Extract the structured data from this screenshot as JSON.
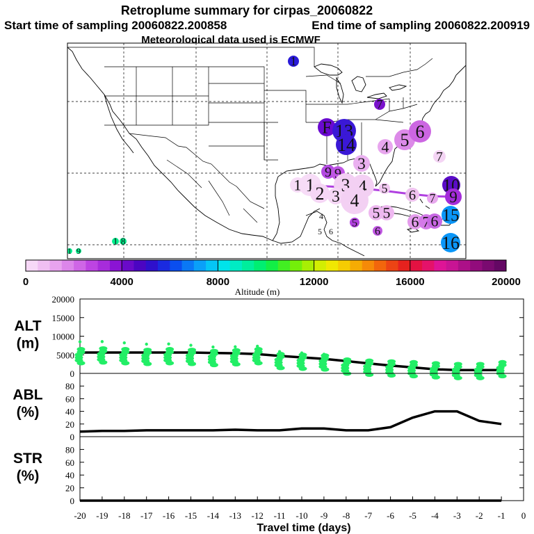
{
  "header": {
    "title": "Retroplume summary for cirpas_20060822",
    "start_label": "Start time of sampling 20060822.200858",
    "end_label": "End time of sampling 20060822.200919",
    "met_label": "Meteorological data used is ECMWF"
  },
  "colorbar": {
    "ticks": [
      "0",
      "4000",
      "8000",
      "12000",
      "16000",
      "20000"
    ],
    "label": "Altitude (m)",
    "colors": [
      "#f7d8f7",
      "#f0bff2",
      "#e8a3ee",
      "#dc86ea",
      "#cf66e6",
      "#bd44e2",
      "#a72cdb",
      "#8b14d4",
      "#6a0ac9",
      "#4b05c2",
      "#2e10cc",
      "#1a2ae0",
      "#0a4eef",
      "#0a78f5",
      "#0aa0f8",
      "#05c6f6",
      "#00e4ea",
      "#00ecc4",
      "#00ee9c",
      "#00ee72",
      "#12ee46",
      "#42ee22",
      "#74ee0a",
      "#a8ee04",
      "#d2ee02",
      "#f0e802",
      "#f6cc02",
      "#f6ac04",
      "#f68a08",
      "#f2660c",
      "#ec4414",
      "#e6221e",
      "#e41242",
      "#e4126a",
      "#de1496",
      "#c81494",
      "#ac1088",
      "#920c7c",
      "#7a0a70",
      "#640864"
    ]
  },
  "map": {
    "land_color": "#ffffff",
    "line_color": "#000000",
    "markers": [
      {
        "label": "1",
        "x": 100,
        "y": 361,
        "alt": 9500,
        "color": "#00ee8c",
        "size": 4
      },
      {
        "label": "9",
        "x": 113,
        "y": 361,
        "alt": 9500,
        "color": "#00ee8c",
        "size": 4
      },
      {
        "label": "1",
        "x": 166,
        "y": 347,
        "alt": 9800,
        "color": "#00ee8c",
        "size": 5
      },
      {
        "label": "8",
        "x": 177,
        "y": 347,
        "alt": 9800,
        "color": "#00ee8c",
        "size": 5
      },
      {
        "label": "1",
        "x": 422,
        "y": 88,
        "alt": 4500,
        "color": "#2a1ad8",
        "size": 8
      },
      {
        "label": "7",
        "x": 546,
        "y": 150,
        "alt": 4200,
        "color": "#7a12cc",
        "size": 8
      },
      {
        "label": "F",
        "x": 470,
        "y": 183,
        "alt": 3800,
        "color": "#6a0ad0",
        "size": 13
      },
      {
        "label": "13",
        "x": 495,
        "y": 188,
        "alt": 4400,
        "color": "#3a18d6",
        "size": 17
      },
      {
        "label": "14",
        "x": 498,
        "y": 208,
        "alt": 4300,
        "color": "#3a18d6",
        "size": 15
      },
      {
        "label": "4",
        "x": 554,
        "y": 211,
        "alt": 1600,
        "color": "#e8a6ee",
        "size": 11
      },
      {
        "label": "5",
        "x": 582,
        "y": 201,
        "alt": 1800,
        "color": "#dc8ae8",
        "size": 15
      },
      {
        "label": "6",
        "x": 604,
        "y": 189,
        "alt": 2300,
        "color": "#cc66e2",
        "size": 16
      },
      {
        "label": "7",
        "x": 632,
        "y": 225,
        "alt": 1000,
        "color": "#f4d4f4",
        "size": 9
      },
      {
        "label": "3",
        "x": 520,
        "y": 235,
        "alt": 1500,
        "color": "#eab0f0",
        "size": 12
      },
      {
        "label": "9",
        "x": 472,
        "y": 247,
        "alt": 2500,
        "color": "#b44ae2",
        "size": 10
      },
      {
        "label": "9",
        "x": 486,
        "y": 249,
        "alt": 2400,
        "color": "#c056e4",
        "size": 10
      },
      {
        "label": "1",
        "x": 428,
        "y": 266,
        "alt": 900,
        "color": "#f7dcf7",
        "size": 11
      },
      {
        "label": "1",
        "x": 446,
        "y": 266,
        "alt": 900,
        "color": "#f7dcf7",
        "size": 16
      },
      {
        "label": "2",
        "x": 460,
        "y": 278,
        "alt": 900,
        "color": "#f5d6f5",
        "size": 14
      },
      {
        "label": "3",
        "x": 497,
        "y": 266,
        "alt": 1000,
        "color": "#f3d0f3",
        "size": 17
      },
      {
        "label": "4",
        "x": 521,
        "y": 268,
        "alt": 1000,
        "color": "#f3d0f3",
        "size": 17
      },
      {
        "label": "3",
        "x": 483,
        "y": 282,
        "alt": 900,
        "color": "#f5d6f5",
        "size": 12
      },
      {
        "label": "4",
        "x": 510,
        "y": 288,
        "alt": 1000,
        "color": "#f3d0f3",
        "size": 20
      },
      {
        "label": "5",
        "x": 553,
        "y": 271,
        "alt": 1100,
        "color": "#f0c8f0",
        "size": 8
      },
      {
        "label": "6",
        "x": 593,
        "y": 280,
        "alt": 1200,
        "color": "#eec2ee",
        "size": 10
      },
      {
        "label": "7",
        "x": 622,
        "y": 285,
        "alt": 1600,
        "color": "#e8a8ee",
        "size": 8
      },
      {
        "label": "10",
        "x": 649,
        "y": 266,
        "alt": 4200,
        "color": "#5a0cc8",
        "size": 13
      },
      {
        "label": "9",
        "x": 652,
        "y": 283,
        "alt": 2900,
        "color": "#a42cda",
        "size": 12
      },
      {
        "label": "15",
        "x": 648,
        "y": 309,
        "alt": 6300,
        "color": "#0a96f8",
        "size": 13
      },
      {
        "label": "5",
        "x": 541,
        "y": 306,
        "alt": 1400,
        "color": "#eeb8f0",
        "size": 11
      },
      {
        "label": "5",
        "x": 556,
        "y": 306,
        "alt": 1400,
        "color": "#eeb8f0",
        "size": 11
      },
      {
        "label": "6",
        "x": 597,
        "y": 319,
        "alt": 1600,
        "color": "#e49cec",
        "size": 11
      },
      {
        "label": "7",
        "x": 613,
        "y": 319,
        "alt": 2000,
        "color": "#d47ae8",
        "size": 11
      },
      {
        "label": "6",
        "x": 625,
        "y": 318,
        "alt": 2200,
        "color": "#c868e4",
        "size": 11
      },
      {
        "label": "4",
        "x": 462,
        "y": 311,
        "alt": 1000,
        "color": "#ffffff",
        "size": 0
      },
      {
        "label": "5",
        "x": 460,
        "y": 333,
        "alt": 1000,
        "color": "#ffffff",
        "size": 0
      },
      {
        "label": "6",
        "x": 476,
        "y": 333,
        "alt": 1000,
        "color": "#ffffff",
        "size": 0
      },
      {
        "label": "5",
        "x": 510,
        "y": 320,
        "alt": 2600,
        "color": "#b040de",
        "size": 7
      },
      {
        "label": "6",
        "x": 543,
        "y": 332,
        "alt": 2600,
        "color": "#c058e2",
        "size": 7
      },
      {
        "label": "16",
        "x": 648,
        "y": 349,
        "alt": 6300,
        "color": "#0a96f8",
        "size": 14
      }
    ]
  },
  "chart_data": [
    {
      "type": "scatter",
      "panel": "ALT",
      "ylabel": "ALT\n(m)",
      "ylim": [
        0,
        20000
      ],
      "yticks": [
        "0",
        "5000",
        "10000",
        "15000",
        "20000"
      ],
      "xlim": [
        -20,
        0
      ],
      "series": [
        {
          "name": "altitude-median",
          "style": "line",
          "x": [
            -20,
            -19,
            -18,
            -17,
            -16,
            -15,
            -14,
            -13,
            -12,
            -11,
            -10,
            -9,
            -8,
            -7,
            -6,
            -5,
            -4,
            -3,
            -2,
            -1
          ],
          "values": [
            5600,
            5600,
            5600,
            5600,
            5600,
            5600,
            5500,
            5400,
            5200,
            4700,
            4300,
            3900,
            3300,
            2700,
            2100,
            1600,
            1100,
            900,
            900,
            900
          ]
        },
        {
          "name": "particle-clusters",
          "style": "scatter",
          "x": [
            -20,
            -19,
            -18,
            -17,
            -16,
            -15,
            -14,
            -13,
            -12,
            -11,
            -10,
            -9,
            -8,
            -7,
            -6,
            -5,
            -4,
            -3,
            -2,
            -1
          ],
          "values": [
            5000,
            5200,
            5000,
            4800,
            5000,
            4800,
            4500,
            4700,
            5000,
            3700,
            3500,
            3300,
            2200,
            1900,
            1700,
            1500,
            1200,
            1000,
            1000,
            1500
          ]
        }
      ]
    },
    {
      "type": "line",
      "panel": "ABL",
      "ylabel": "ABL\n(%)",
      "ylim": [
        0,
        100
      ],
      "yticks": [
        "0",
        "20",
        "40",
        "60",
        "80"
      ],
      "x": [
        -20,
        -19,
        -18,
        -17,
        -16,
        -15,
        -14,
        -13,
        -12,
        -11,
        -10,
        -9,
        -8,
        -7,
        -6,
        -5,
        -4,
        -3,
        -2,
        -1
      ],
      "series": [
        {
          "name": "abl-fraction",
          "values": [
            8,
            9,
            9,
            10,
            10,
            10,
            10,
            11,
            10,
            10,
            13,
            13,
            10,
            10,
            15,
            30,
            40,
            40,
            25,
            20
          ]
        }
      ]
    },
    {
      "type": "line",
      "panel": "STR",
      "ylabel": "STR\n(%)",
      "ylim": [
        0,
        100
      ],
      "yticks": [
        "0",
        "20",
        "40",
        "60",
        "80"
      ],
      "x": [
        -20,
        -19,
        -18,
        -17,
        -16,
        -15,
        -14,
        -13,
        -12,
        -11,
        -10,
        -9,
        -8,
        -7,
        -6,
        -5,
        -4,
        -3,
        -2,
        -1
      ],
      "series": [
        {
          "name": "str-fraction",
          "values": [
            0,
            0,
            0,
            0,
            0,
            0,
            0,
            0,
            0,
            0,
            0,
            0,
            0,
            0,
            0,
            0,
            0,
            0,
            0,
            0
          ]
        }
      ]
    }
  ],
  "xaxis": {
    "label": "Travel time (days)",
    "ticks": [
      "-20",
      "-19",
      "-18",
      "-17",
      "-16",
      "-15",
      "-14",
      "-13",
      "-12",
      "-11",
      "-10",
      "-9",
      "-8",
      "-7",
      "-6",
      "-5",
      "-4",
      "-3",
      "-2",
      "-1",
      "0"
    ],
    "tick_values": [
      -20,
      -19,
      -18,
      -17,
      -16,
      -15,
      -14,
      -13,
      -12,
      -11,
      -10,
      -9,
      -8,
      -7,
      -6,
      -5,
      -4,
      -3,
      -2,
      -1,
      0
    ]
  },
  "style": {
    "scatter_color": "#22ee66",
    "line_color": "#000000",
    "track_color": "#b040e0"
  }
}
